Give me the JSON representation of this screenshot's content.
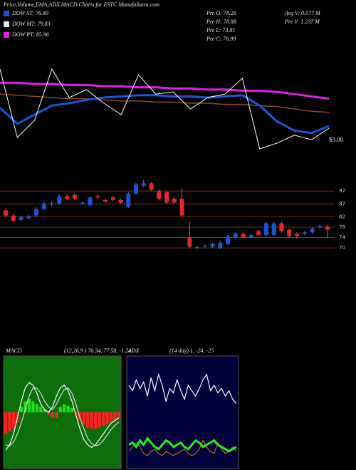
{
  "title": "Price,Volume,EMA,ADX,MACD Charts for ESTC MunafaSutra.com",
  "legend": [
    {
      "label": "DOW ST: 76.89",
      "color": "#1a56d6"
    },
    {
      "label": "DOW MT: 79.83",
      "color": "#e8e8e8"
    },
    {
      "label": "DOW PT: 85.96",
      "color": "#e020e0"
    }
  ],
  "stats": [
    "Pre O: 78.26",
    "Pre H: 78.88",
    "Pre L: 73.81",
    "Pre C: 76.99",
    "Avg V: 0.077 M",
    "Pre V: 1.237 M"
  ],
  "chart_data": [
    {
      "type": "line",
      "annotation": "$3.00",
      "ylim": [
        0,
        100
      ],
      "series": [
        {
          "color": "#8b4a2b",
          "width": 1.5,
          "values": [
            58,
            57,
            56,
            55,
            54,
            54,
            53,
            52,
            52,
            51,
            51,
            50,
            50,
            49,
            49,
            48,
            47,
            45,
            43,
            42
          ]
        },
        {
          "color": "#e020e0",
          "width": 3,
          "values": [
            68,
            68,
            67,
            67,
            66,
            66,
            65,
            65,
            64,
            64,
            63,
            63,
            62,
            62,
            61,
            61,
            60,
            58,
            56,
            54
          ]
        },
        {
          "color": "#1a56d6",
          "width": 3,
          "values": [
            46,
            32,
            40,
            48,
            50,
            53,
            55,
            56,
            57,
            57,
            56,
            56,
            55,
            56,
            57,
            48,
            34,
            26,
            24,
            30
          ]
        },
        {
          "color": "#ffffff",
          "width": 1,
          "values": [
            80,
            20,
            35,
            80,
            55,
            62,
            50,
            40,
            75,
            58,
            60,
            45,
            55,
            58,
            72,
            10,
            15,
            22,
            18,
            28
          ]
        }
      ]
    },
    {
      "type": "candlestick",
      "ylim": [
        67,
        97
      ],
      "yticks": [
        92,
        87,
        82,
        78,
        74,
        70
      ],
      "up_color": "#1a56d6",
      "down_color": "#e8252b",
      "grid": true,
      "open": [
        84.5,
        82.5,
        80.8,
        81.5,
        82.5,
        85,
        86.8,
        87,
        90,
        90.5,
        87,
        86.5,
        90,
        88.5,
        89.5,
        88.5,
        86,
        91,
        94,
        95,
        92,
        91.5,
        89,
        89,
        74,
        70,
        70.5,
        70.5,
        70,
        71.5,
        74,
        75.5,
        74,
        76.5,
        75,
        75,
        79.5,
        77,
        75.5,
        75.5,
        76,
        78,
        78.26
      ],
      "high": [
        85.2,
        83.3,
        82.6,
        82.9,
        85.6,
        87.8,
        88,
        90.6,
        90.7,
        91.2,
        88.1,
        90,
        90.6,
        89.2,
        90.1,
        89.1,
        91.6,
        95.2,
        96.3,
        95.6,
        92.7,
        92,
        89.6,
        93,
        80,
        70.8,
        71.3,
        72,
        72.6,
        75,
        76,
        76,
        75.6,
        77,
        80,
        80.2,
        80,
        77.5,
        76,
        76.5,
        78,
        79,
        78.88
      ],
      "low": [
        81.8,
        80,
        80.3,
        81,
        82,
        84.6,
        86.2,
        86.6,
        88.5,
        88.6,
        86.5,
        86,
        89,
        87.4,
        88,
        87,
        85.5,
        90.6,
        93.5,
        92,
        88.4,
        87,
        87,
        82,
        70,
        69.6,
        70.1,
        70,
        69.5,
        71,
        73.5,
        73.6,
        73.5,
        74.6,
        74.5,
        74.6,
        76,
        74,
        73.5,
        75,
        75.5,
        77.5,
        73.81
      ],
      "close": [
        82.5,
        80.5,
        82,
        82.3,
        85,
        87,
        87.3,
        90,
        89,
        89,
        87.5,
        89.5,
        89.5,
        88,
        88.5,
        87.5,
        91,
        94.5,
        95,
        92.5,
        89,
        87.5,
        87.5,
        82.5,
        70.5,
        70.3,
        70.8,
        71.5,
        72,
        74.5,
        75.5,
        74,
        75,
        75,
        79.5,
        79.5,
        76.5,
        74.5,
        74.5,
        76,
        77.5,
        78.5,
        76.99
      ]
    },
    {
      "type": "macd",
      "label": "MACD",
      "params": "(12,26,9 ) 76.34, 77.58, -1.24",
      "ylim": [
        -1,
        1
      ],
      "background": "#0b6e0b",
      "histogram": {
        "up_color": "#22dd22",
        "down_color": "#ff2020",
        "values": [
          -0.4,
          -0.35,
          -0.3,
          -0.2,
          0.1,
          0.2,
          0.25,
          0.2,
          0.15,
          0.1,
          0.05,
          -0.05,
          -0.1,
          -0.1,
          0.1,
          0.15,
          0.12,
          0.08,
          -0.05,
          -0.15,
          -0.22,
          -0.28,
          -0.3,
          -0.3,
          -0.28,
          -0.25,
          -0.22,
          -0.18,
          -0.15,
          -0.1
        ]
      },
      "series": [
        {
          "color": "#ffffff",
          "width": 1.2,
          "values": [
            -0.7,
            -0.6,
            -0.4,
            -0.1,
            0.2,
            0.45,
            0.55,
            0.5,
            0.35,
            0.15,
            0.05,
            0,
            0.1,
            0.3,
            0.45,
            0.5,
            0.4,
            0.2,
            -0.05,
            -0.3,
            -0.5,
            -0.6,
            -0.65,
            -0.6,
            -0.5,
            -0.4,
            -0.3,
            -0.2,
            -0.15,
            -0.1
          ]
        },
        {
          "color": "#d8d8d8",
          "width": 1.2,
          "values": [
            -0.6,
            -0.62,
            -0.55,
            -0.4,
            -0.2,
            0.05,
            0.3,
            0.45,
            0.45,
            0.35,
            0.2,
            0.1,
            0.05,
            0.15,
            0.3,
            0.42,
            0.45,
            0.35,
            0.15,
            -0.1,
            -0.3,
            -0.48,
            -0.58,
            -0.62,
            -0.6,
            -0.52,
            -0.42,
            -0.32,
            -0.24,
            -0.18
          ]
        }
      ]
    },
    {
      "type": "line",
      "label": "ADX",
      "params": "(14 day) 1, -24, -25",
      "ylim": [
        0,
        100
      ],
      "background": "#00003a",
      "series": [
        {
          "color": "#ffffff",
          "width": 1.2,
          "values": [
            75,
            70,
            80,
            72,
            78,
            65,
            82,
            70,
            85,
            75,
            60,
            72,
            68,
            80,
            70,
            62,
            75,
            70,
            65,
            72,
            80,
            85,
            70,
            75,
            68,
            72,
            65,
            70,
            62,
            58
          ]
        },
        {
          "color": "#e07a10",
          "width": 1,
          "values": [
            14,
            18,
            22,
            18,
            12,
            10,
            14,
            16,
            12,
            10,
            14,
            12,
            10,
            12,
            14,
            16,
            12,
            10,
            12,
            16,
            24,
            18,
            14,
            12,
            22,
            16,
            12,
            14,
            18,
            14
          ]
        },
        {
          "color": "#22ee22",
          "width": 3,
          "values": [
            20,
            22,
            18,
            24,
            20,
            26,
            22,
            18,
            16,
            20,
            24,
            22,
            18,
            20,
            22,
            18,
            16,
            20,
            24,
            22,
            18,
            20,
            22,
            24,
            20,
            18,
            16,
            14,
            16,
            18
          ]
        }
      ]
    }
  ]
}
